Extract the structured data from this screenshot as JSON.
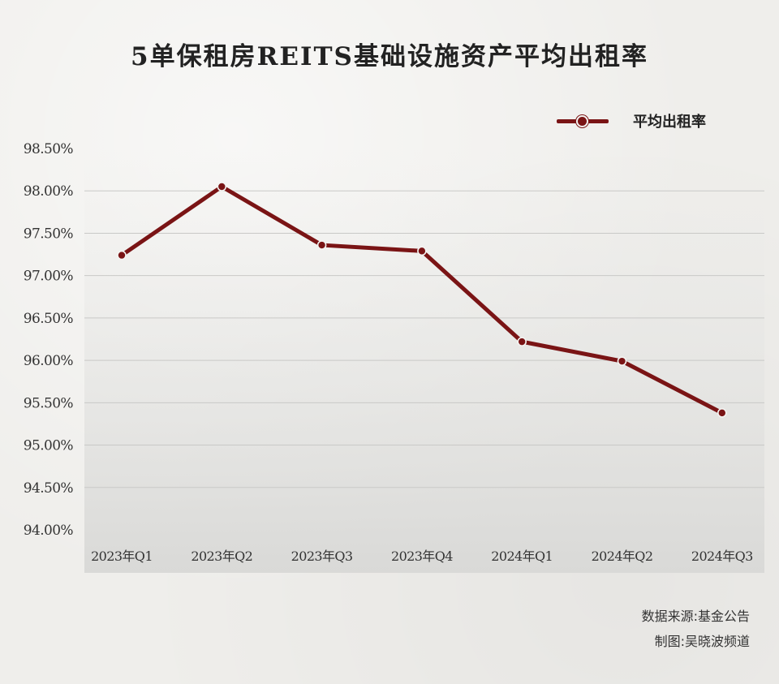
{
  "chart_data": {
    "type": "line",
    "title": "5单保租房REITS基础设施资产平均出租率",
    "categories": [
      "2023年Q1",
      "2023年Q2",
      "2023年Q3",
      "2023年Q4",
      "2024年Q1",
      "2024年Q2",
      "2024年Q3"
    ],
    "series": [
      {
        "name": "平均出租率",
        "values": [
          97.24,
          98.05,
          97.36,
          97.29,
          96.22,
          95.99,
          95.38
        ],
        "color": "#7a1415"
      }
    ],
    "ylim": [
      94.0,
      98.5
    ],
    "yticks": [
      "98.50%",
      "98.00%",
      "97.50%",
      "97.00%",
      "96.50%",
      "96.00%",
      "95.50%",
      "95.00%",
      "94.50%",
      "94.00%"
    ],
    "ytick_values": [
      98.5,
      98.0,
      97.5,
      97.0,
      96.5,
      96.0,
      95.5,
      95.0,
      94.5,
      94.0
    ],
    "grid": true,
    "legend": "top-right"
  },
  "footer": {
    "source": "数据来源:基金公告",
    "credit": "制图:吴晓波频道"
  }
}
